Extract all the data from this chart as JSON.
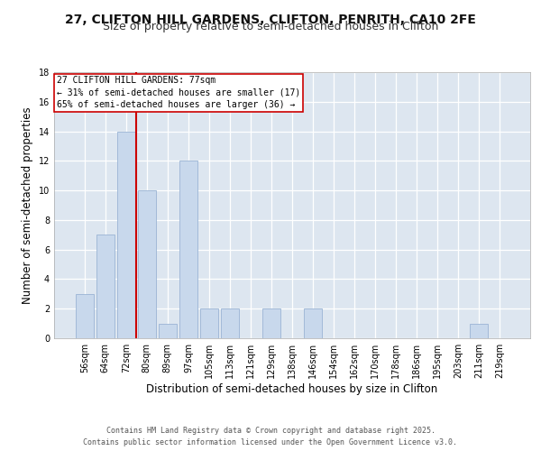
{
  "title_line1": "27, CLIFTON HILL GARDENS, CLIFTON, PENRITH, CA10 2FE",
  "title_line2": "Size of property relative to semi-detached houses in Clifton",
  "xlabel": "Distribution of semi-detached houses by size in Clifton",
  "ylabel": "Number of semi-detached properties",
  "categories": [
    "56sqm",
    "64sqm",
    "72sqm",
    "80sqm",
    "89sqm",
    "97sqm",
    "105sqm",
    "113sqm",
    "121sqm",
    "129sqm",
    "138sqm",
    "146sqm",
    "154sqm",
    "162sqm",
    "170sqm",
    "178sqm",
    "186sqm",
    "195sqm",
    "203sqm",
    "211sqm",
    "219sqm"
  ],
  "values": [
    3,
    7,
    14,
    10,
    1,
    12,
    2,
    2,
    0,
    2,
    0,
    2,
    0,
    0,
    0,
    0,
    0,
    0,
    0,
    1,
    0
  ],
  "bar_color": "#c8d8ec",
  "bar_edge_color": "#9ab4d4",
  "vline_x_index": 2.5,
  "vline_color": "#cc0000",
  "annotation_text": "27 CLIFTON HILL GARDENS: 77sqm\n← 31% of semi-detached houses are smaller (17)\n65% of semi-detached houses are larger (36) →",
  "annotation_box_edgecolor": "#cc0000",
  "ylim": [
    0,
    18
  ],
  "yticks": [
    0,
    2,
    4,
    6,
    8,
    10,
    12,
    14,
    16,
    18
  ],
  "plot_bg_color": "#dde6f0",
  "grid_color": "#ffffff",
  "footer_line1": "Contains HM Land Registry data © Crown copyright and database right 2025.",
  "footer_line2": "Contains public sector information licensed under the Open Government Licence v3.0.",
  "title_fontsize": 10,
  "subtitle_fontsize": 9,
  "axis_label_fontsize": 8.5,
  "tick_fontsize": 7,
  "annot_fontsize": 7,
  "footer_fontsize": 6
}
